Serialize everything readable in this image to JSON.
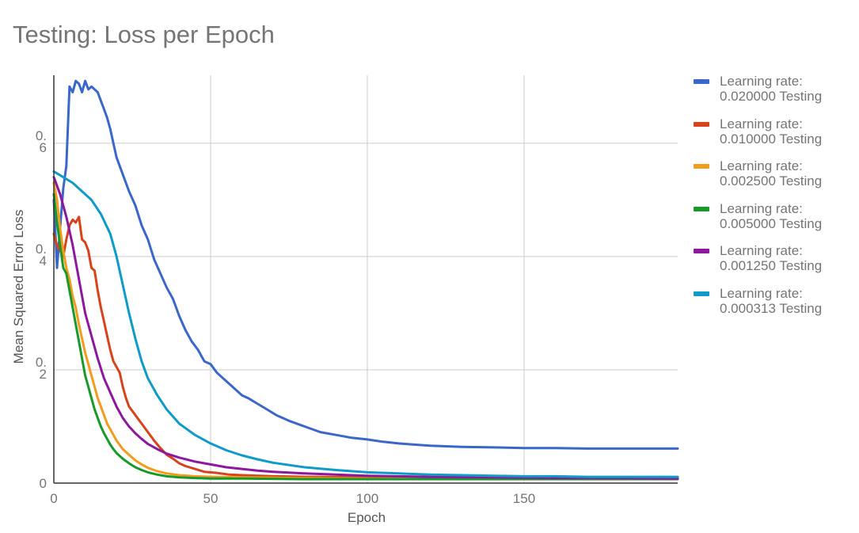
{
  "chart_data": {
    "type": "line",
    "title": "Testing: Loss per Epoch",
    "xlabel": "Epoch",
    "ylabel": "Mean Squared Error Loss",
    "xlim": [
      0,
      199
    ],
    "ylim": [
      0,
      0.72
    ],
    "x_ticks": [
      {
        "value": 0,
        "label": "0"
      },
      {
        "value": 50,
        "label": "50"
      },
      {
        "value": 100,
        "label": "100"
      },
      {
        "value": 150,
        "label": "150"
      }
    ],
    "y_ticks": [
      {
        "value": 0,
        "label": "0"
      },
      {
        "value": 0.2,
        "label": "0.\n2"
      },
      {
        "value": 0.4,
        "label": "0.\n4"
      },
      {
        "value": 0.6,
        "label": "0.\n6"
      }
    ],
    "grid": true,
    "legend_position": "right",
    "series": [
      {
        "name": "Learning rate:\n0.020000 Testing",
        "color": "#3b67c9",
        "points": [
          [
            0,
            0.5
          ],
          [
            1,
            0.38
          ],
          [
            2,
            0.45
          ],
          [
            3,
            0.52
          ],
          [
            4,
            0.56
          ],
          [
            5,
            0.7
          ],
          [
            6,
            0.69
          ],
          [
            7,
            0.71
          ],
          [
            8,
            0.705
          ],
          [
            9,
            0.69
          ],
          [
            10,
            0.71
          ],
          [
            11,
            0.695
          ],
          [
            12,
            0.7
          ],
          [
            13,
            0.695
          ],
          [
            14,
            0.69
          ],
          [
            15,
            0.675
          ],
          [
            16,
            0.66
          ],
          [
            17,
            0.645
          ],
          [
            18,
            0.625
          ],
          [
            19,
            0.6
          ],
          [
            20,
            0.575
          ],
          [
            22,
            0.545
          ],
          [
            24,
            0.515
          ],
          [
            26,
            0.49
          ],
          [
            28,
            0.455
          ],
          [
            30,
            0.43
          ],
          [
            32,
            0.395
          ],
          [
            34,
            0.37
          ],
          [
            36,
            0.345
          ],
          [
            38,
            0.325
          ],
          [
            40,
            0.295
          ],
          [
            42,
            0.27
          ],
          [
            44,
            0.25
          ],
          [
            46,
            0.235
          ],
          [
            48,
            0.215
          ],
          [
            50,
            0.21
          ],
          [
            52,
            0.195
          ],
          [
            54,
            0.185
          ],
          [
            56,
            0.175
          ],
          [
            58,
            0.165
          ],
          [
            60,
            0.155
          ],
          [
            62,
            0.15
          ],
          [
            65,
            0.14
          ],
          [
            68,
            0.13
          ],
          [
            71,
            0.12
          ],
          [
            75,
            0.11
          ],
          [
            80,
            0.1
          ],
          [
            85,
            0.09
          ],
          [
            90,
            0.085
          ],
          [
            95,
            0.08
          ],
          [
            100,
            0.077
          ],
          [
            105,
            0.073
          ],
          [
            110,
            0.07
          ],
          [
            115,
            0.068
          ],
          [
            120,
            0.066
          ],
          [
            130,
            0.064
          ],
          [
            140,
            0.063
          ],
          [
            150,
            0.062
          ],
          [
            160,
            0.062
          ],
          [
            170,
            0.061
          ],
          [
            180,
            0.061
          ],
          [
            190,
            0.061
          ],
          [
            199,
            0.061
          ]
        ]
      },
      {
        "name": "Learning rate:\n0.010000 Testing",
        "color": "#d8431c",
        "points": [
          [
            0,
            0.44
          ],
          [
            1,
            0.42
          ],
          [
            2,
            0.41
          ],
          [
            3,
            0.4
          ],
          [
            4,
            0.43
          ],
          [
            5,
            0.455
          ],
          [
            6,
            0.465
          ],
          [
            7,
            0.46
          ],
          [
            8,
            0.47
          ],
          [
            9,
            0.43
          ],
          [
            10,
            0.425
          ],
          [
            11,
            0.41
          ],
          [
            12,
            0.38
          ],
          [
            13,
            0.375
          ],
          [
            14,
            0.34
          ],
          [
            15,
            0.31
          ],
          [
            16,
            0.285
          ],
          [
            17,
            0.26
          ],
          [
            18,
            0.235
          ],
          [
            19,
            0.215
          ],
          [
            20,
            0.205
          ],
          [
            21,
            0.195
          ],
          [
            22,
            0.17
          ],
          [
            23,
            0.15
          ],
          [
            24,
            0.135
          ],
          [
            26,
            0.12
          ],
          [
            28,
            0.105
          ],
          [
            30,
            0.09
          ],
          [
            32,
            0.075
          ],
          [
            34,
            0.062
          ],
          [
            36,
            0.05
          ],
          [
            38,
            0.043
          ],
          [
            40,
            0.035
          ],
          [
            42,
            0.03
          ],
          [
            45,
            0.025
          ],
          [
            48,
            0.02
          ],
          [
            52,
            0.018
          ],
          [
            56,
            0.015
          ],
          [
            60,
            0.014
          ],
          [
            70,
            0.012
          ],
          [
            80,
            0.011
          ],
          [
            100,
            0.01
          ],
          [
            120,
            0.009
          ],
          [
            140,
            0.009
          ],
          [
            160,
            0.009
          ],
          [
            180,
            0.009
          ],
          [
            199,
            0.009
          ]
        ]
      },
      {
        "name": "Learning rate:\n0.002500 Testing",
        "color": "#f29b1d",
        "points": [
          [
            0,
            0.53
          ],
          [
            1,
            0.5
          ],
          [
            2,
            0.45
          ],
          [
            3,
            0.41
          ],
          [
            4,
            0.38
          ],
          [
            5,
            0.36
          ],
          [
            6,
            0.33
          ],
          [
            7,
            0.31
          ],
          [
            8,
            0.28
          ],
          [
            9,
            0.255
          ],
          [
            10,
            0.23
          ],
          [
            11,
            0.21
          ],
          [
            12,
            0.19
          ],
          [
            13,
            0.17
          ],
          [
            14,
            0.15
          ],
          [
            15,
            0.135
          ],
          [
            16,
            0.12
          ],
          [
            17,
            0.105
          ],
          [
            18,
            0.095
          ],
          [
            19,
            0.085
          ],
          [
            20,
            0.075
          ],
          [
            22,
            0.06
          ],
          [
            24,
            0.05
          ],
          [
            26,
            0.04
          ],
          [
            28,
            0.033
          ],
          [
            30,
            0.027
          ],
          [
            33,
            0.021
          ],
          [
            36,
            0.017
          ],
          [
            40,
            0.014
          ],
          [
            45,
            0.012
          ],
          [
            50,
            0.011
          ],
          [
            60,
            0.01
          ],
          [
            80,
            0.009
          ],
          [
            100,
            0.008
          ],
          [
            150,
            0.008
          ],
          [
            199,
            0.008
          ]
        ]
      },
      {
        "name": "Learning rate:\n0.005000 Testing",
        "color": "#189a2a",
        "points": [
          [
            0,
            0.51
          ],
          [
            1,
            0.46
          ],
          [
            2,
            0.42
          ],
          [
            3,
            0.38
          ],
          [
            4,
            0.37
          ],
          [
            5,
            0.34
          ],
          [
            6,
            0.31
          ],
          [
            7,
            0.28
          ],
          [
            8,
            0.25
          ],
          [
            9,
            0.22
          ],
          [
            10,
            0.19
          ],
          [
            11,
            0.17
          ],
          [
            12,
            0.15
          ],
          [
            13,
            0.13
          ],
          [
            14,
            0.115
          ],
          [
            15,
            0.1
          ],
          [
            16,
            0.088
          ],
          [
            17,
            0.078
          ],
          [
            18,
            0.068
          ],
          [
            19,
            0.06
          ],
          [
            20,
            0.053
          ],
          [
            22,
            0.043
          ],
          [
            24,
            0.035
          ],
          [
            26,
            0.028
          ],
          [
            28,
            0.023
          ],
          [
            30,
            0.019
          ],
          [
            33,
            0.015
          ],
          [
            36,
            0.012
          ],
          [
            40,
            0.01
          ],
          [
            45,
            0.009
          ],
          [
            50,
            0.008
          ],
          [
            60,
            0.008
          ],
          [
            80,
            0.007
          ],
          [
            100,
            0.007
          ],
          [
            150,
            0.007
          ],
          [
            199,
            0.007
          ]
        ]
      },
      {
        "name": "Learning rate:\n0.001250 Testing",
        "color": "#8e17a0",
        "points": [
          [
            0,
            0.54
          ],
          [
            2,
            0.51
          ],
          [
            4,
            0.47
          ],
          [
            6,
            0.42
          ],
          [
            8,
            0.36
          ],
          [
            10,
            0.3
          ],
          [
            12,
            0.26
          ],
          [
            14,
            0.22
          ],
          [
            16,
            0.185
          ],
          [
            18,
            0.16
          ],
          [
            20,
            0.135
          ],
          [
            22,
            0.115
          ],
          [
            24,
            0.1
          ],
          [
            26,
            0.088
          ],
          [
            28,
            0.078
          ],
          [
            30,
            0.069
          ],
          [
            33,
            0.06
          ],
          [
            36,
            0.052
          ],
          [
            40,
            0.045
          ],
          [
            45,
            0.038
          ],
          [
            50,
            0.033
          ],
          [
            55,
            0.028
          ],
          [
            60,
            0.025
          ],
          [
            65,
            0.022
          ],
          [
            70,
            0.02
          ],
          [
            80,
            0.017
          ],
          [
            90,
            0.015
          ],
          [
            100,
            0.013
          ],
          [
            120,
            0.011
          ],
          [
            140,
            0.01
          ],
          [
            160,
            0.009
          ],
          [
            180,
            0.009
          ],
          [
            199,
            0.008
          ]
        ]
      },
      {
        "name": "Learning rate:\n0.000313 Testing",
        "color": "#0f9bc9",
        "points": [
          [
            0,
            0.55
          ],
          [
            3,
            0.54
          ],
          [
            6,
            0.53
          ],
          [
            9,
            0.515
          ],
          [
            12,
            0.5
          ],
          [
            15,
            0.475
          ],
          [
            18,
            0.44
          ],
          [
            20,
            0.4
          ],
          [
            22,
            0.35
          ],
          [
            24,
            0.3
          ],
          [
            26,
            0.255
          ],
          [
            28,
            0.215
          ],
          [
            30,
            0.185
          ],
          [
            33,
            0.155
          ],
          [
            36,
            0.13
          ],
          [
            40,
            0.105
          ],
          [
            45,
            0.085
          ],
          [
            50,
            0.07
          ],
          [
            55,
            0.058
          ],
          [
            60,
            0.049
          ],
          [
            65,
            0.042
          ],
          [
            70,
            0.036
          ],
          [
            80,
            0.028
          ],
          [
            90,
            0.023
          ],
          [
            100,
            0.019
          ],
          [
            110,
            0.017
          ],
          [
            120,
            0.015
          ],
          [
            130,
            0.014
          ],
          [
            140,
            0.013
          ],
          [
            150,
            0.012
          ],
          [
            160,
            0.012
          ],
          [
            170,
            0.011
          ],
          [
            180,
            0.011
          ],
          [
            190,
            0.011
          ],
          [
            199,
            0.011
          ]
        ]
      }
    ]
  }
}
